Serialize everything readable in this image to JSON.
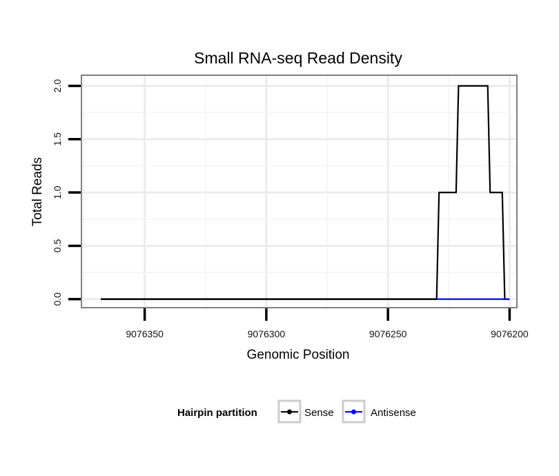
{
  "chart_data": {
    "type": "line",
    "title": "Small RNA-seq Read Density",
    "xlabel": "Genomic Position",
    "ylabel": "Total Reads",
    "x_reversed": true,
    "xlim": [
      9076376,
      9076197
    ],
    "ylim": [
      -0.08,
      2.1
    ],
    "x_ticks": [
      9076350,
      9076300,
      9076250,
      9076200
    ],
    "x_tick_labels": [
      "9076350",
      "9076300",
      "9076250",
      "9076200"
    ],
    "y_ticks": [
      0.0,
      0.5,
      1.0,
      1.5,
      2.0
    ],
    "y_tick_labels": [
      "0.0",
      "0.5",
      "1.0",
      "1.5",
      "2.0"
    ],
    "grid": true,
    "legend": {
      "title": "Hairpin partition",
      "placement": "bottom"
    },
    "series": [
      {
        "name": "Sense",
        "color": "#000000",
        "step": true,
        "points": [
          [
            9076368,
            0
          ],
          [
            9076230,
            0
          ],
          [
            9076229,
            1
          ],
          [
            9076222,
            1
          ],
          [
            9076221,
            2
          ],
          [
            9076209,
            2
          ],
          [
            9076208,
            1
          ],
          [
            9076203,
            1
          ],
          [
            9076202,
            0
          ],
          [
            9076200,
            0
          ]
        ]
      },
      {
        "name": "Antisense",
        "color": "#0000ff",
        "step": false,
        "points": [
          [
            9076230,
            0
          ],
          [
            9076200,
            0
          ]
        ]
      }
    ]
  }
}
